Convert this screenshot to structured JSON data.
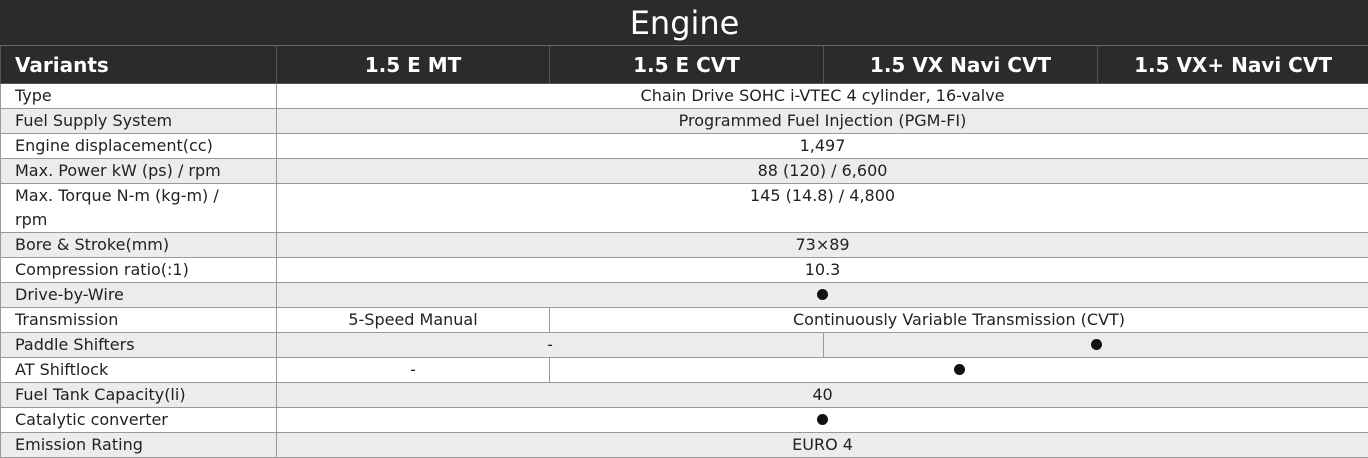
{
  "title": "Engine",
  "header": {
    "variants_label": "Variants",
    "variants": [
      "1.5 E MT",
      "1.5 E CVT",
      "1.5 VX Navi CVT",
      "1.5 VX+ Navi CVT"
    ]
  },
  "rows": [
    {
      "label": "Type",
      "value": "Chain Drive SOHC i-VTEC 4 cylinder, 16-valve"
    },
    {
      "label": "Fuel Supply System",
      "value": "Programmed Fuel Injection (PGM-FI)"
    },
    {
      "label": "Engine displacement(cc)",
      "value": "1,497"
    },
    {
      "label": "Max. Power kW (ps) / rpm",
      "value": "88 (120) / 6,600"
    },
    {
      "label": "Max. Torque N-m (kg-m) / rpm",
      "value": "145 (14.8) / 4,800"
    },
    {
      "label": "Bore & Stroke(mm)",
      "value": "73×89"
    },
    {
      "label": "Compression ratio(:1)",
      "value": "10.3"
    },
    {
      "label": "Drive-by-Wire",
      "value": "●"
    },
    {
      "label": "Transmission",
      "value_mt": "5-Speed Manual",
      "value_cvt": "Continuously Variable Transmission (CVT)"
    },
    {
      "label": "Paddle Shifters",
      "value_e": "-",
      "value_vx": "●"
    },
    {
      "label": "AT Shiftlock",
      "value_mt": "-",
      "value_cvt": "●"
    },
    {
      "label": "Fuel Tank Capacity(li)",
      "value": "40"
    },
    {
      "label": "Catalytic converter",
      "value": "●"
    },
    {
      "label": "Emission Rating",
      "value": "EURO 4"
    }
  ]
}
